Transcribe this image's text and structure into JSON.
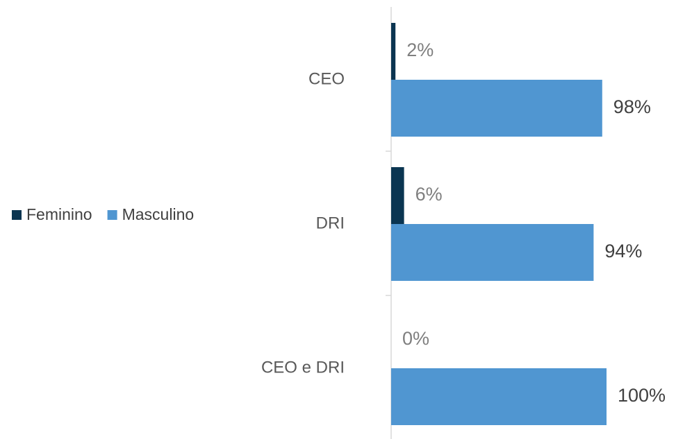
{
  "chart_data": {
    "type": "bar",
    "orientation": "horizontal",
    "categories": [
      "CEO",
      "DRI",
      "CEO e DRI"
    ],
    "series": [
      {
        "name": "Feminino",
        "color": "#0b3551",
        "values": [
          2,
          6,
          0
        ],
        "value_labels": [
          "2%",
          "6%",
          "0%"
        ]
      },
      {
        "name": "Masculino",
        "color": "#5096d1",
        "values": [
          98,
          94,
          100
        ],
        "value_labels": [
          "98%",
          "94%",
          "100%"
        ]
      }
    ],
    "legend": "left"
  }
}
